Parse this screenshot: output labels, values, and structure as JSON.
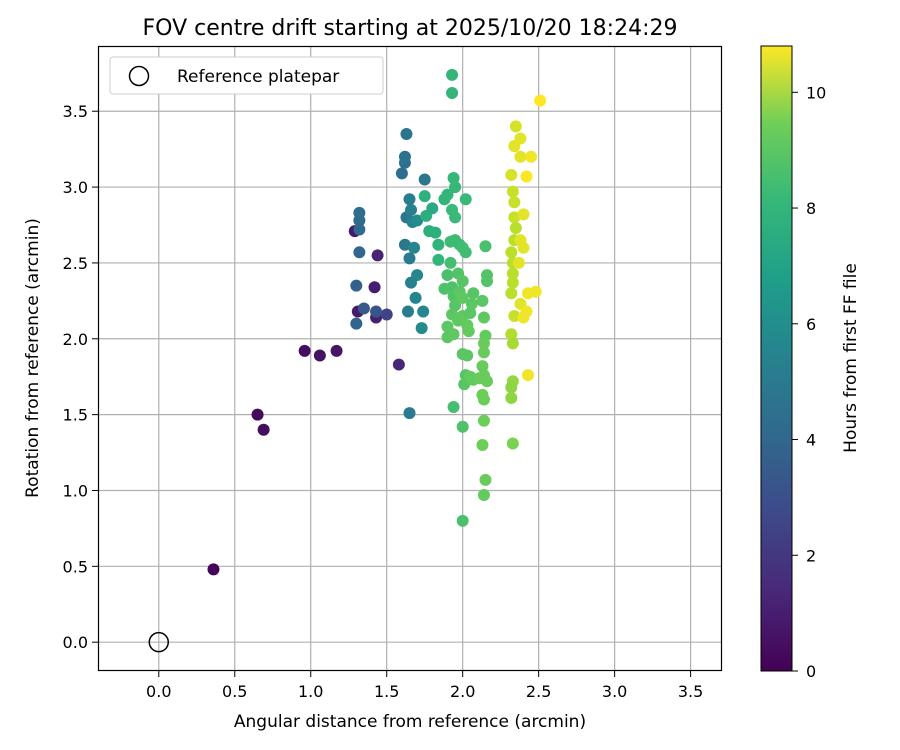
{
  "chart_data": {
    "type": "scatter",
    "title": "FOV centre drift starting at 2025/10/20 18:24:29",
    "xlabel": "Angular distance from reference (arcmin)",
    "ylabel": "Rotation from reference (arcmin)",
    "xlim": [
      -0.4,
      3.7
    ],
    "ylim": [
      -0.19,
      3.93
    ],
    "xticks": [
      0.0,
      0.5,
      1.0,
      1.5,
      2.0,
      2.5,
      3.0,
      3.5
    ],
    "xtick_labels": [
      "0.0",
      "0.5",
      "1.0",
      "1.5",
      "2.0",
      "2.5",
      "3.0",
      "3.5"
    ],
    "yticks": [
      0.0,
      0.5,
      1.0,
      1.5,
      2.0,
      2.5,
      3.0,
      3.5
    ],
    "ytick_labels": [
      "0.0",
      "0.5",
      "1.0",
      "1.5",
      "2.0",
      "2.5",
      "3.0",
      "3.5"
    ],
    "grid": true,
    "legend": {
      "position": "top-left",
      "label": "Reference platepar"
    },
    "reference_point": {
      "x": 0.0,
      "y": 0.0
    },
    "colorbar": {
      "label": "Hours from first FF file",
      "colormap": "viridis",
      "range": [
        0,
        10.8
      ],
      "ticks": [
        0,
        2,
        4,
        6,
        8,
        10
      ],
      "tick_labels": [
        "0",
        "2",
        "4",
        "6",
        "8",
        "10"
      ]
    },
    "points": [
      {
        "x": 0.36,
        "y": 0.48,
        "t": 0.1
      },
      {
        "x": 0.65,
        "y": 1.5,
        "t": 0.3
      },
      {
        "x": 0.69,
        "y": 1.4,
        "t": 0.4
      },
      {
        "x": 0.96,
        "y": 1.92,
        "t": 0.5
      },
      {
        "x": 1.06,
        "y": 1.89,
        "t": 0.6
      },
      {
        "x": 1.17,
        "y": 1.92,
        "t": 0.7
      },
      {
        "x": 1.29,
        "y": 2.71,
        "t": 0.8
      },
      {
        "x": 1.31,
        "y": 2.18,
        "t": 0.9
      },
      {
        "x": 1.42,
        "y": 2.34,
        "t": 1.0
      },
      {
        "x": 1.43,
        "y": 2.14,
        "t": 1.1
      },
      {
        "x": 1.44,
        "y": 2.55,
        "t": 1.2
      },
      {
        "x": 1.58,
        "y": 1.83,
        "t": 1.3
      },
      {
        "x": 1.5,
        "y": 2.16,
        "t": 2.5
      },
      {
        "x": 1.43,
        "y": 2.18,
        "t": 3.2
      },
      {
        "x": 1.35,
        "y": 2.2,
        "t": 3.4
      },
      {
        "x": 1.3,
        "y": 2.35,
        "t": 3.7
      },
      {
        "x": 1.3,
        "y": 2.1,
        "t": 3.9
      },
      {
        "x": 1.32,
        "y": 2.57,
        "t": 4.0
      },
      {
        "x": 1.32,
        "y": 2.72,
        "t": 4.1
      },
      {
        "x": 1.32,
        "y": 2.78,
        "t": 4.2
      },
      {
        "x": 1.32,
        "y": 2.83,
        "t": 4.3
      },
      {
        "x": 1.6,
        "y": 3.09,
        "t": 4.4
      },
      {
        "x": 1.62,
        "y": 3.16,
        "t": 4.5
      },
      {
        "x": 1.62,
        "y": 3.2,
        "t": 4.6
      },
      {
        "x": 1.63,
        "y": 3.35,
        "t": 4.7
      },
      {
        "x": 1.63,
        "y": 2.8,
        "t": 4.8
      },
      {
        "x": 1.62,
        "y": 2.62,
        "t": 4.9
      },
      {
        "x": 1.65,
        "y": 2.53,
        "t": 5.0
      },
      {
        "x": 1.64,
        "y": 2.18,
        "t": 5.1
      },
      {
        "x": 1.65,
        "y": 1.51,
        "t": 5.0
      },
      {
        "x": 1.65,
        "y": 2.92,
        "t": 5.2
      },
      {
        "x": 1.66,
        "y": 2.85,
        "t": 5.3
      },
      {
        "x": 1.67,
        "y": 2.77,
        "t": 5.4
      },
      {
        "x": 1.66,
        "y": 2.37,
        "t": 5.3
      },
      {
        "x": 1.7,
        "y": 2.42,
        "t": 5.6
      },
      {
        "x": 1.69,
        "y": 2.27,
        "t": 5.5
      },
      {
        "x": 1.75,
        "y": 3.05,
        "t": 4.8
      },
      {
        "x": 1.74,
        "y": 2.18,
        "t": 5.6
      },
      {
        "x": 1.73,
        "y": 2.07,
        "t": 5.8
      },
      {
        "x": 1.68,
        "y": 2.6,
        "t": 5.6
      },
      {
        "x": 1.7,
        "y": 2.78,
        "t": 5.9
      },
      {
        "x": 1.75,
        "y": 2.94,
        "t": 7.7
      },
      {
        "x": 1.76,
        "y": 2.81,
        "t": 7.6
      },
      {
        "x": 1.8,
        "y": 2.86,
        "t": 7.4
      },
      {
        "x": 1.78,
        "y": 2.71,
        "t": 7.6
      },
      {
        "x": 1.82,
        "y": 2.7,
        "t": 7.7
      },
      {
        "x": 1.84,
        "y": 2.62,
        "t": 7.9
      },
      {
        "x": 1.84,
        "y": 2.52,
        "t": 8.0
      },
      {
        "x": 1.88,
        "y": 2.92,
        "t": 7.9
      },
      {
        "x": 1.9,
        "y": 2.95,
        "t": 8.0
      },
      {
        "x": 1.93,
        "y": 3.74,
        "t": 8.0
      },
      {
        "x": 1.93,
        "y": 3.62,
        "t": 8.0
      },
      {
        "x": 1.94,
        "y": 3.06,
        "t": 8.1
      },
      {
        "x": 1.95,
        "y": 3.0,
        "t": 8.1
      },
      {
        "x": 1.93,
        "y": 2.85,
        "t": 8.2
      },
      {
        "x": 1.95,
        "y": 2.8,
        "t": 8.2
      },
      {
        "x": 1.92,
        "y": 2.64,
        "t": 8.3
      },
      {
        "x": 1.95,
        "y": 2.65,
        "t": 8.3
      },
      {
        "x": 1.98,
        "y": 2.62,
        "t": 8.3
      },
      {
        "x": 2.0,
        "y": 2.6,
        "t": 8.4
      },
      {
        "x": 2.02,
        "y": 2.57,
        "t": 8.4
      },
      {
        "x": 1.92,
        "y": 2.5,
        "t": 8.5
      },
      {
        "x": 1.9,
        "y": 2.42,
        "t": 8.6
      },
      {
        "x": 1.88,
        "y": 2.33,
        "t": 8.7
      },
      {
        "x": 1.93,
        "y": 2.34,
        "t": 8.7
      },
      {
        "x": 1.94,
        "y": 2.28,
        "t": 8.8
      },
      {
        "x": 1.97,
        "y": 2.43,
        "t": 8.8
      },
      {
        "x": 2.0,
        "y": 2.38,
        "t": 8.9
      },
      {
        "x": 1.95,
        "y": 2.22,
        "t": 8.9
      },
      {
        "x": 1.93,
        "y": 2.16,
        "t": 9.0
      },
      {
        "x": 1.9,
        "y": 2.08,
        "t": 9.0
      },
      {
        "x": 1.9,
        "y": 2.01,
        "t": 9.0
      },
      {
        "x": 1.94,
        "y": 2.03,
        "t": 9.1
      },
      {
        "x": 1.97,
        "y": 2.12,
        "t": 9.1
      },
      {
        "x": 2.0,
        "y": 2.15,
        "t": 9.1
      },
      {
        "x": 2.03,
        "y": 2.09,
        "t": 9.2
      },
      {
        "x": 2.04,
        "y": 2.05,
        "t": 9.2
      },
      {
        "x": 2.02,
        "y": 2.92,
        "t": 8.2
      },
      {
        "x": 2.07,
        "y": 2.3,
        "t": 8.9
      },
      {
        "x": 2.06,
        "y": 2.23,
        "t": 9.0
      },
      {
        "x": 2.05,
        "y": 2.17,
        "t": 9.0
      },
      {
        "x": 2.15,
        "y": 2.61,
        "t": 8.6
      },
      {
        "x": 2.16,
        "y": 2.42,
        "t": 8.8
      },
      {
        "x": 2.16,
        "y": 2.38,
        "t": 8.8
      },
      {
        "x": 2.13,
        "y": 2.25,
        "t": 9.0
      },
      {
        "x": 2.14,
        "y": 2.14,
        "t": 9.1
      },
      {
        "x": 2.15,
        "y": 2.02,
        "t": 9.2
      },
      {
        "x": 2.14,
        "y": 1.97,
        "t": 9.3
      },
      {
        "x": 2.14,
        "y": 1.91,
        "t": 9.3
      },
      {
        "x": 2.13,
        "y": 1.82,
        "t": 9.3
      },
      {
        "x": 2.14,
        "y": 1.76,
        "t": 9.3
      },
      {
        "x": 2.16,
        "y": 1.72,
        "t": 9.3
      },
      {
        "x": 2.13,
        "y": 1.63,
        "t": 9.4
      },
      {
        "x": 2.14,
        "y": 1.6,
        "t": 9.4
      },
      {
        "x": 2.14,
        "y": 1.46,
        "t": 9.4
      },
      {
        "x": 2.13,
        "y": 1.3,
        "t": 9.4
      },
      {
        "x": 2.15,
        "y": 1.07,
        "t": 9.3
      },
      {
        "x": 2.14,
        "y": 0.97,
        "t": 9.2
      },
      {
        "x": 2.0,
        "y": 0.8,
        "t": 8.6
      },
      {
        "x": 2.0,
        "y": 1.42,
        "t": 8.7
      },
      {
        "x": 2.01,
        "y": 1.7,
        "t": 8.9
      },
      {
        "x": 2.02,
        "y": 1.76,
        "t": 8.9
      },
      {
        "x": 2.0,
        "y": 1.9,
        "t": 9.0
      },
      {
        "x": 2.03,
        "y": 1.89,
        "t": 9.0
      },
      {
        "x": 2.05,
        "y": 1.75,
        "t": 9.2
      },
      {
        "x": 2.07,
        "y": 1.73,
        "t": 9.2
      },
      {
        "x": 2.11,
        "y": 1.74,
        "t": 9.3
      },
      {
        "x": 1.98,
        "y": 2.31,
        "t": 9.0
      },
      {
        "x": 2.0,
        "y": 2.27,
        "t": 9.1
      },
      {
        "x": 1.94,
        "y": 1.55,
        "t": 8.5
      },
      {
        "x": 2.35,
        "y": 3.4,
        "t": 10.5
      },
      {
        "x": 2.34,
        "y": 3.27,
        "t": 10.6
      },
      {
        "x": 2.38,
        "y": 3.32,
        "t": 10.6
      },
      {
        "x": 2.38,
        "y": 3.2,
        "t": 10.6
      },
      {
        "x": 2.32,
        "y": 3.08,
        "t": 10.5
      },
      {
        "x": 2.33,
        "y": 2.97,
        "t": 10.4
      },
      {
        "x": 2.34,
        "y": 2.9,
        "t": 10.4
      },
      {
        "x": 2.34,
        "y": 2.8,
        "t": 10.4
      },
      {
        "x": 2.35,
        "y": 2.73,
        "t": 10.3
      },
      {
        "x": 2.34,
        "y": 2.65,
        "t": 10.3
      },
      {
        "x": 2.32,
        "y": 2.57,
        "t": 10.3
      },
      {
        "x": 2.33,
        "y": 2.5,
        "t": 10.3
      },
      {
        "x": 2.33,
        "y": 2.43,
        "t": 10.3
      },
      {
        "x": 2.33,
        "y": 2.37,
        "t": 10.3
      },
      {
        "x": 2.32,
        "y": 2.3,
        "t": 10.3
      },
      {
        "x": 2.34,
        "y": 2.15,
        "t": 10.4
      },
      {
        "x": 2.32,
        "y": 2.03,
        "t": 10.2
      },
      {
        "x": 2.33,
        "y": 1.97,
        "t": 10.1
      },
      {
        "x": 2.33,
        "y": 1.72,
        "t": 9.9
      },
      {
        "x": 2.32,
        "y": 1.68,
        "t": 9.8
      },
      {
        "x": 2.32,
        "y": 1.61,
        "t": 9.8
      },
      {
        "x": 2.33,
        "y": 1.31,
        "t": 9.6
      },
      {
        "x": 2.4,
        "y": 2.82,
        "t": 10.6
      },
      {
        "x": 2.38,
        "y": 2.65,
        "t": 10.6
      },
      {
        "x": 2.4,
        "y": 2.6,
        "t": 10.6
      },
      {
        "x": 2.37,
        "y": 2.5,
        "t": 10.6
      },
      {
        "x": 2.38,
        "y": 2.23,
        "t": 10.6
      },
      {
        "x": 2.4,
        "y": 2.14,
        "t": 10.7
      },
      {
        "x": 2.42,
        "y": 2.18,
        "t": 10.7
      },
      {
        "x": 2.43,
        "y": 2.3,
        "t": 10.7
      },
      {
        "x": 2.48,
        "y": 2.31,
        "t": 10.7
      },
      {
        "x": 2.45,
        "y": 3.2,
        "t": 10.7
      },
      {
        "x": 2.51,
        "y": 3.57,
        "t": 10.8
      },
      {
        "x": 2.42,
        "y": 3.07,
        "t": 10.8
      },
      {
        "x": 2.43,
        "y": 1.76,
        "t": 10.7
      }
    ]
  }
}
